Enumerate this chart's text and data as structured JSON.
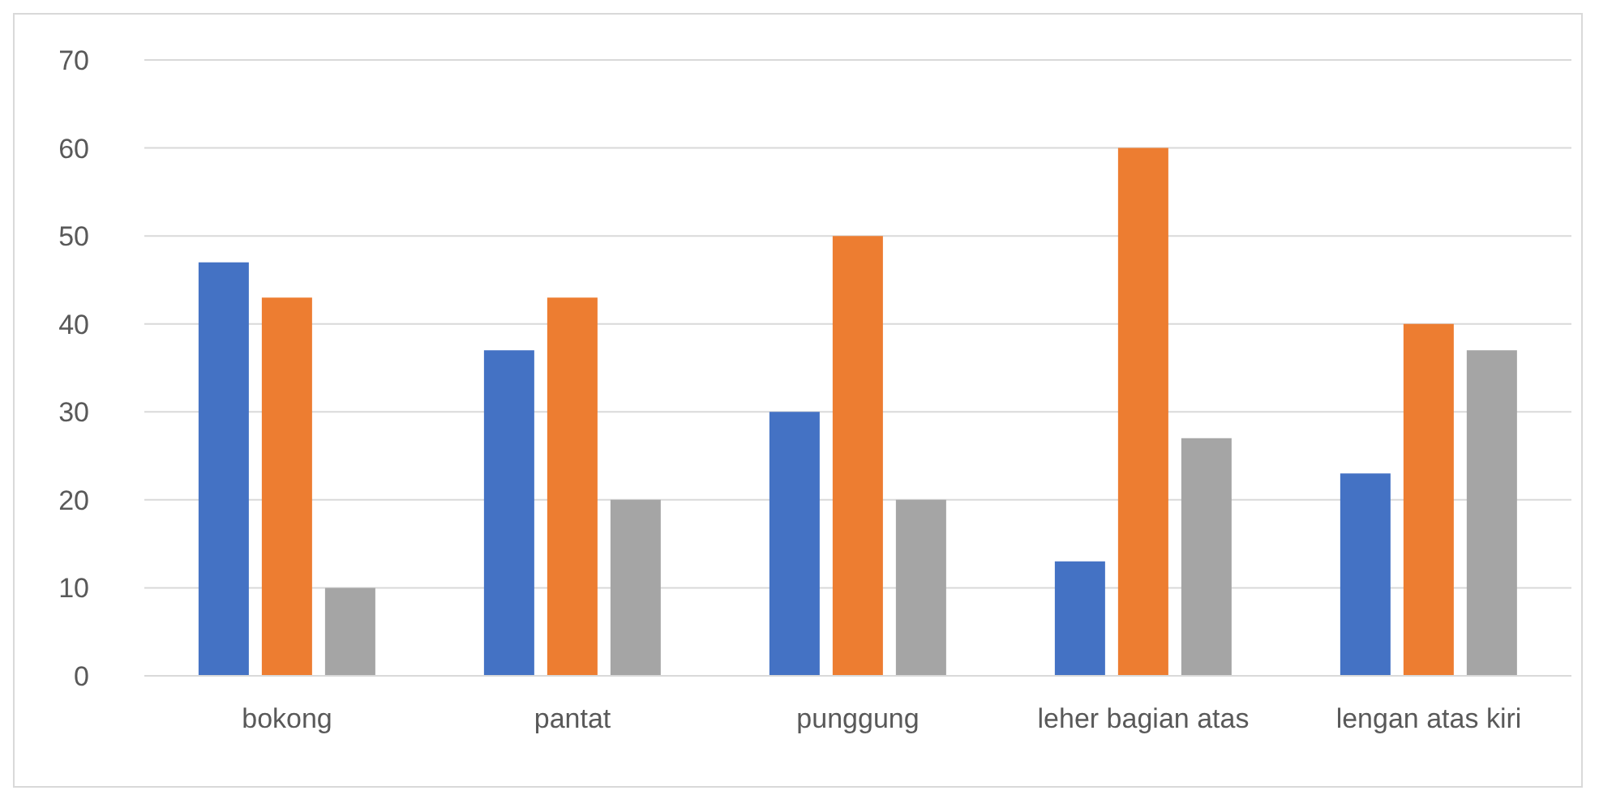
{
  "chart_data": {
    "type": "bar",
    "categories": [
      "bokong",
      "pantat",
      "punggung",
      "leher bagian atas",
      "lengan atas kiri"
    ],
    "series": [
      {
        "color": "#4472c4",
        "values": [
          47,
          37,
          30,
          13,
          23
        ]
      },
      {
        "color": "#ed7d31",
        "values": [
          43,
          43,
          50,
          60,
          40
        ]
      },
      {
        "color": "#a5a5a5",
        "values": [
          10,
          20,
          20,
          27,
          37
        ]
      }
    ],
    "ylim": [
      0,
      70
    ],
    "yticks": [
      0,
      10,
      20,
      30,
      40,
      50,
      60,
      70
    ],
    "grid": "y",
    "legend": false
  }
}
